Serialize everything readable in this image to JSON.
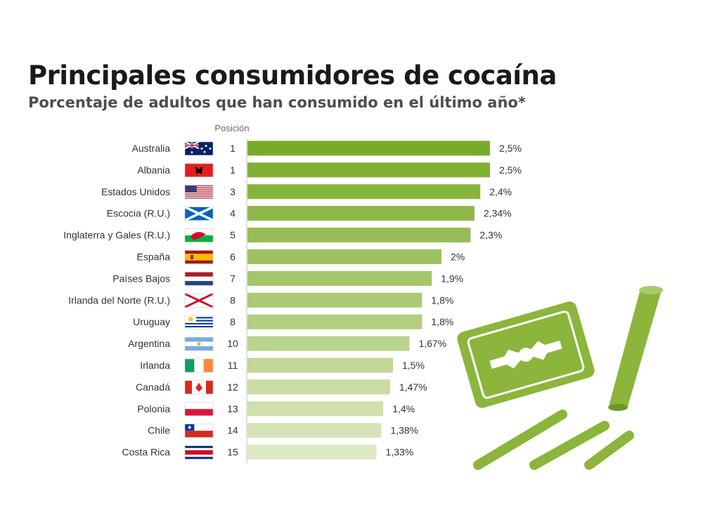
{
  "title": "Principales consumidores de cocaína",
  "subtitle": "Porcentaje de adultos que han consumido en el último año*",
  "position_header": "Posición",
  "colors": {
    "bar_dark": "#7aab28",
    "bar_light": "#dde9c4",
    "illustration": "#8cb53c"
  },
  "chart_data": {
    "type": "bar",
    "orientation": "horizontal",
    "title": "Principales consumidores de cocaína",
    "subtitle": "Porcentaje de adultos que han consumido en el último año*",
    "categories": [
      "Australia",
      "Albania",
      "Estados Unidos",
      "Escocia (R.U.)",
      "Inglaterra y Gales (R.U.)",
      "España",
      "Países Bajos",
      "Irlanda del Norte (R.U.)",
      "Uruguay",
      "Argentina",
      "Irlanda",
      "Canadá",
      "Polonia",
      "Chile",
      "Costa Rica"
    ],
    "values": [
      2.5,
      2.5,
      2.4,
      2.34,
      2.3,
      2,
      1.9,
      1.8,
      1.8,
      1.67,
      1.5,
      1.47,
      1.4,
      1.38,
      1.33
    ],
    "value_labels": [
      "2,5%",
      "2,5%",
      "2,4%",
      "2,34%",
      "2,3%",
      "2%",
      "1,9%",
      "1,8%",
      "1,8%",
      "1,67%",
      "1,5%",
      "1,47%",
      "1,4%",
      "1,38%",
      "1,33%"
    ],
    "ranks": [
      "1",
      "1",
      "3",
      "4",
      "5",
      "6",
      "7",
      "8",
      "8",
      "10",
      "11",
      "12",
      "13",
      "14",
      "15"
    ],
    "flags": [
      "australia-flag",
      "albania-flag",
      "usa-flag",
      "scotland-flag",
      "wales-flag",
      "spain-flag",
      "netherlands-flag",
      "northern-ireland-flag",
      "uruguay-flag",
      "argentina-flag",
      "ireland-flag",
      "canada-flag",
      "poland-flag",
      "chile-flag",
      "costa-rica-flag"
    ],
    "xlim": [
      0,
      2.5
    ],
    "grid": false,
    "legend": "none"
  }
}
